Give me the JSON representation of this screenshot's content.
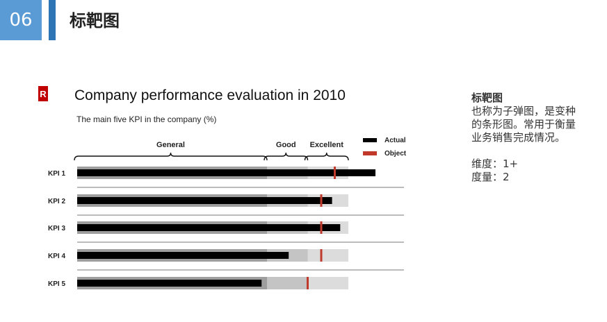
{
  "header": {
    "number": "06",
    "title": "标靶图"
  },
  "chart_data": {
    "type": "bullet",
    "title": "Company performance evaluation in 2010",
    "subtitle": "The main five KPI in the company (%)",
    "range_labels": [
      "General",
      "Good",
      "Excellent"
    ],
    "legend": [
      "Actual",
      "Object"
    ],
    "legend_position": "top-right",
    "xlim": [
      0,
      100
    ],
    "ranges": [
      70,
      85,
      100
    ],
    "categories": [
      "KPI 1",
      "KPI 2",
      "KPI 3",
      "KPI 4",
      "KPI 5"
    ],
    "series": [
      {
        "name": "Actual",
        "values": [
          110,
          94,
          97,
          78,
          68
        ]
      },
      {
        "name": "Object",
        "values": [
          95,
          90,
          90,
          90,
          85
        ]
      }
    ],
    "colors": {
      "actual": "#000000",
      "object": "#c0392b",
      "range_general": "#9e9e9e",
      "range_good": "#c4c4c4",
      "range_excellent": "#dcdcdc"
    }
  },
  "sidebar": {
    "heading": "标靶图",
    "desc_lines": [
      "也称为子弹图，是变种",
      "的条形图。常用于衡量",
      "业务销售完成情况。"
    ],
    "dimension": "维度：1+",
    "measure": "度量：2"
  }
}
